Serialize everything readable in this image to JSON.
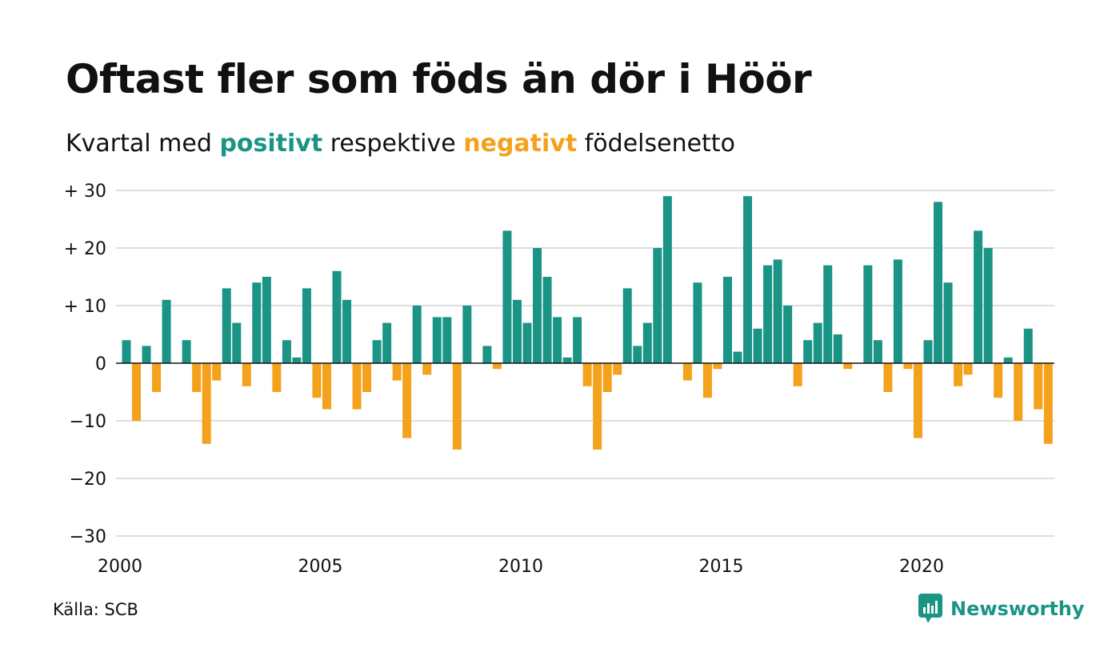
{
  "title": "Oftast fler som föds än dör i Höör",
  "subtitle": {
    "prefix": "Kvartal med",
    "positive_word": "positivt",
    "middle": "respektive",
    "negative_word": "negativt",
    "suffix": "födelsenetto"
  },
  "colors": {
    "positive": "#1a9485",
    "negative": "#f4a11b",
    "grid": "#dddddd"
  },
  "source": "Källa: SCB",
  "brand": {
    "name": "Newsworthy",
    "icon": "bar-chart-speech-icon"
  },
  "chart_data": {
    "type": "bar",
    "ylim": [
      -30,
      30
    ],
    "y_ticks": [
      {
        "value": 30,
        "label": "+ 30"
      },
      {
        "value": 20,
        "label": "+ 20"
      },
      {
        "value": 10,
        "label": "+ 10"
      },
      {
        "value": 0,
        "label": "0"
      },
      {
        "value": -10,
        "label": "−10"
      },
      {
        "value": -20,
        "label": "−20"
      },
      {
        "value": -30,
        "label": "−30"
      }
    ],
    "x_ticks": [
      {
        "value": 2000,
        "label": "2000"
      },
      {
        "value": 2005,
        "label": "2005"
      },
      {
        "value": 2010,
        "label": "2010"
      },
      {
        "value": 2015,
        "label": "2015"
      },
      {
        "value": 2020,
        "label": "2020"
      }
    ],
    "start_year": 2000,
    "periods_per_year": 4,
    "values": [
      4,
      -10,
      3,
      -5,
      11,
      0,
      4,
      -5,
      -14,
      -3,
      13,
      7,
      -4,
      14,
      15,
      -5,
      4,
      1,
      13,
      -6,
      -8,
      16,
      11,
      -8,
      -5,
      4,
      7,
      -3,
      -13,
      10,
      -2,
      8,
      8,
      -15,
      10,
      0,
      3,
      -1,
      23,
      11,
      7,
      20,
      15,
      8,
      1,
      8,
      -4,
      -15,
      -5,
      -2,
      13,
      3,
      7,
      20,
      29,
      0,
      -3,
      14,
      -6,
      -1,
      15,
      2,
      29,
      6,
      17,
      18,
      10,
      -4,
      4,
      7,
      17,
      5,
      -1,
      0,
      17,
      4,
      -5,
      18,
      -1,
      -13,
      4,
      28,
      14,
      -4,
      -2,
      23,
      20,
      -6,
      1,
      -10,
      6,
      -8,
      -14
    ]
  }
}
